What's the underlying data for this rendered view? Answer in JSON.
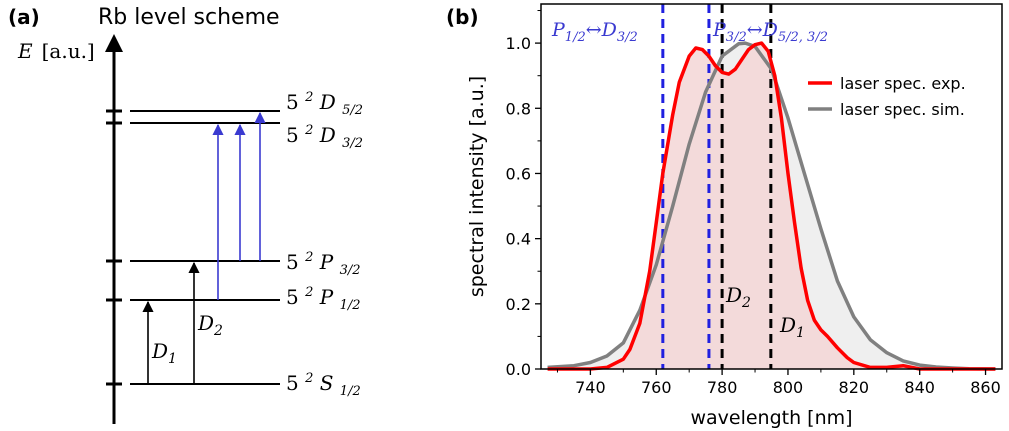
{
  "panel_a": {
    "label": "(a)",
    "title": "Rb level scheme",
    "energy_axis": {
      "symbol": "E",
      "unit": "[a.u.]"
    },
    "levels": [
      {
        "n": "5",
        "mult": "2",
        "term": "D",
        "j": "5/2"
      },
      {
        "n": "5",
        "mult": "2",
        "term": "D",
        "j": "3/2"
      },
      {
        "n": "5",
        "mult": "2",
        "term": "P",
        "j": "3/2"
      },
      {
        "n": "5",
        "mult": "2",
        "term": "P",
        "j": "1/2"
      },
      {
        "n": "5",
        "mult": "2",
        "term": "S",
        "j": "1/2"
      }
    ],
    "transitions": [
      {
        "main": "D",
        "sub": "1",
        "color": "#000000"
      },
      {
        "main": "D",
        "sub": "2",
        "color": "#000000"
      },
      {
        "color": "#3a3ad0"
      },
      {
        "color": "#3a3ad0"
      },
      {
        "color": "#3a3ad0"
      }
    ]
  },
  "panel_b": {
    "label": "(b)"
  },
  "chart_data": {
    "type": "line",
    "xlabel": "wavelength [nm]",
    "ylabel": "spectral intensity [a.u.]",
    "xlim": [
      725,
      865
    ],
    "ylim": [
      0,
      1.12
    ],
    "xticks": [
      740,
      760,
      780,
      800,
      820,
      840,
      860
    ],
    "yticks": [
      0.0,
      0.2,
      0.4,
      0.6,
      0.8,
      1.0
    ],
    "ytick_labels": [
      "0.0",
      "0.2",
      "0.4",
      "0.6",
      "0.8",
      "1.0"
    ],
    "legend_position": "top-right",
    "series": [
      {
        "name": "laser spec. exp.",
        "color": "#ff0000",
        "fill": "#f3d6d6",
        "x": [
          727,
          735,
          740,
          745,
          750,
          752,
          755,
          758,
          760,
          762,
          765,
          767,
          770,
          772,
          774,
          776,
          778,
          780,
          782,
          784,
          786,
          788,
          790,
          792,
          794,
          796,
          798,
          800,
          802,
          804,
          806,
          808,
          810,
          812,
          815,
          818,
          820,
          825,
          830,
          835,
          840,
          850,
          863
        ],
        "y": [
          0.0,
          0.0,
          0.0,
          0.005,
          0.03,
          0.06,
          0.14,
          0.3,
          0.45,
          0.6,
          0.78,
          0.88,
          0.96,
          0.985,
          0.98,
          0.96,
          0.93,
          0.91,
          0.905,
          0.92,
          0.95,
          0.98,
          0.995,
          1.0,
          0.975,
          0.9,
          0.77,
          0.6,
          0.45,
          0.31,
          0.21,
          0.15,
          0.12,
          0.1,
          0.065,
          0.035,
          0.02,
          0.005,
          0.005,
          0.01,
          0.0,
          0.0,
          0.0
        ]
      },
      {
        "name": "laser spec. sim.",
        "color": "#808080",
        "fill": "#efefef",
        "x": [
          727,
          735,
          740,
          745,
          750,
          755,
          760,
          765,
          770,
          775,
          780,
          785,
          787,
          790,
          795,
          800,
          805,
          810,
          815,
          820,
          825,
          830,
          835,
          840,
          845,
          850,
          855,
          863
        ],
        "y": [
          0.005,
          0.01,
          0.02,
          0.04,
          0.08,
          0.18,
          0.32,
          0.5,
          0.69,
          0.85,
          0.96,
          0.998,
          1.0,
          0.99,
          0.92,
          0.77,
          0.6,
          0.43,
          0.27,
          0.16,
          0.09,
          0.05,
          0.025,
          0.012,
          0.006,
          0.003,
          0.001,
          0.0
        ]
      }
    ],
    "reference_lines": [
      {
        "x": 762,
        "color": "#2020e0"
      },
      {
        "x": 776,
        "color": "#2020e0"
      },
      {
        "x": 780,
        "color": "#000000"
      },
      {
        "x": 794.8,
        "color": "#000000"
      }
    ],
    "annotations": {
      "p12": {
        "letter": "P",
        "sub": "1/2",
        "arrow": "↔",
        "letter2": "D",
        "sub2": "3/2",
        "color": "#3a3ad0"
      },
      "p32": {
        "letter": "P",
        "sub": "3/2",
        "arrow": "↔",
        "letter2": "D",
        "sub2": "5/2, 3/2",
        "color": "#3a3ad0"
      },
      "d2": {
        "main": "D",
        "sub": "2"
      },
      "d1": {
        "main": "D",
        "sub": "1"
      }
    }
  }
}
